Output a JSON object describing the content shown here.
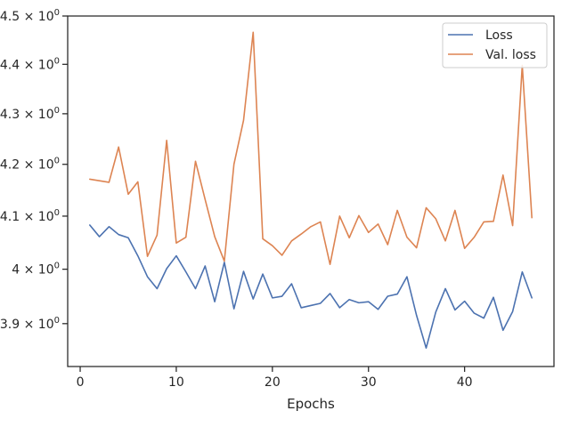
{
  "chart_data": {
    "type": "line",
    "title": "",
    "xlabel": "Epochs",
    "ylabel": "",
    "y_scale": "log",
    "xlim": [
      -1.3,
      49.3
    ],
    "ylim": [
      3.823,
      4.5
    ],
    "grid": false,
    "legend_position": "top-right",
    "x_ticks": [
      0,
      10,
      20,
      30,
      40
    ],
    "x_tick_labels": [
      "0",
      "10",
      "20",
      "30",
      "40"
    ],
    "y_ticks": [
      3.9,
      4.0,
      4.1,
      4.2,
      4.3,
      4.4,
      4.5
    ],
    "y_tick_labels": [
      {
        "mantissa": "3.9",
        "base": "10",
        "exp": "0"
      },
      {
        "mantissa": "4",
        "base": "10",
        "exp": "0"
      },
      {
        "mantissa": "4.1",
        "base": "10",
        "exp": "0"
      },
      {
        "mantissa": "4.2",
        "base": "10",
        "exp": "0"
      },
      {
        "mantissa": "4.3",
        "base": "10",
        "exp": "0"
      },
      {
        "mantissa": "4.4",
        "base": "10",
        "exp": "0"
      },
      {
        "mantissa": "4.5",
        "base": "10",
        "exp": "0"
      }
    ],
    "x": [
      1,
      2,
      3,
      4,
      5,
      6,
      7,
      8,
      9,
      10,
      11,
      12,
      13,
      14,
      15,
      16,
      17,
      18,
      19,
      20,
      21,
      22,
      23,
      24,
      25,
      26,
      27,
      28,
      29,
      30,
      31,
      32,
      33,
      34,
      35,
      36,
      37,
      38,
      39,
      40,
      41,
      42,
      43,
      44,
      45,
      46,
      47
    ],
    "series": [
      {
        "name": "Loss",
        "color": "#4c72b0",
        "values": [
          4.083,
          4.061,
          4.08,
          4.065,
          4.059,
          4.025,
          3.986,
          3.964,
          4.001,
          4.025,
          3.995,
          3.964,
          4.006,
          3.94,
          4.013,
          3.927,
          3.996,
          3.945,
          3.991,
          3.947,
          3.95,
          3.973,
          3.929,
          3.933,
          3.937,
          3.955,
          3.929,
          3.944,
          3.938,
          3.94,
          3.926,
          3.95,
          3.954,
          3.986,
          3.915,
          3.856,
          3.921,
          3.964,
          3.925,
          3.941,
          3.919,
          3.91,
          3.948,
          3.888,
          3.922,
          3.995,
          3.947
        ]
      },
      {
        "name": "Val. loss",
        "color": "#dd8452",
        "values": [
          4.171,
          4.168,
          4.165,
          4.234,
          4.142,
          4.166,
          4.024,
          4.064,
          4.247,
          4.049,
          4.06,
          4.206,
          4.132,
          4.061,
          4.015,
          4.2,
          4.287,
          4.466,
          4.057,
          4.044,
          4.026,
          4.053,
          4.066,
          4.08,
          4.089,
          4.009,
          4.1,
          4.059,
          4.101,
          4.069,
          4.085,
          4.046,
          4.111,
          4.06,
          4.04,
          4.116,
          4.095,
          4.053,
          4.111,
          4.039,
          4.06,
          4.089,
          4.09,
          4.179,
          4.082,
          4.398,
          4.097
        ]
      }
    ]
  }
}
